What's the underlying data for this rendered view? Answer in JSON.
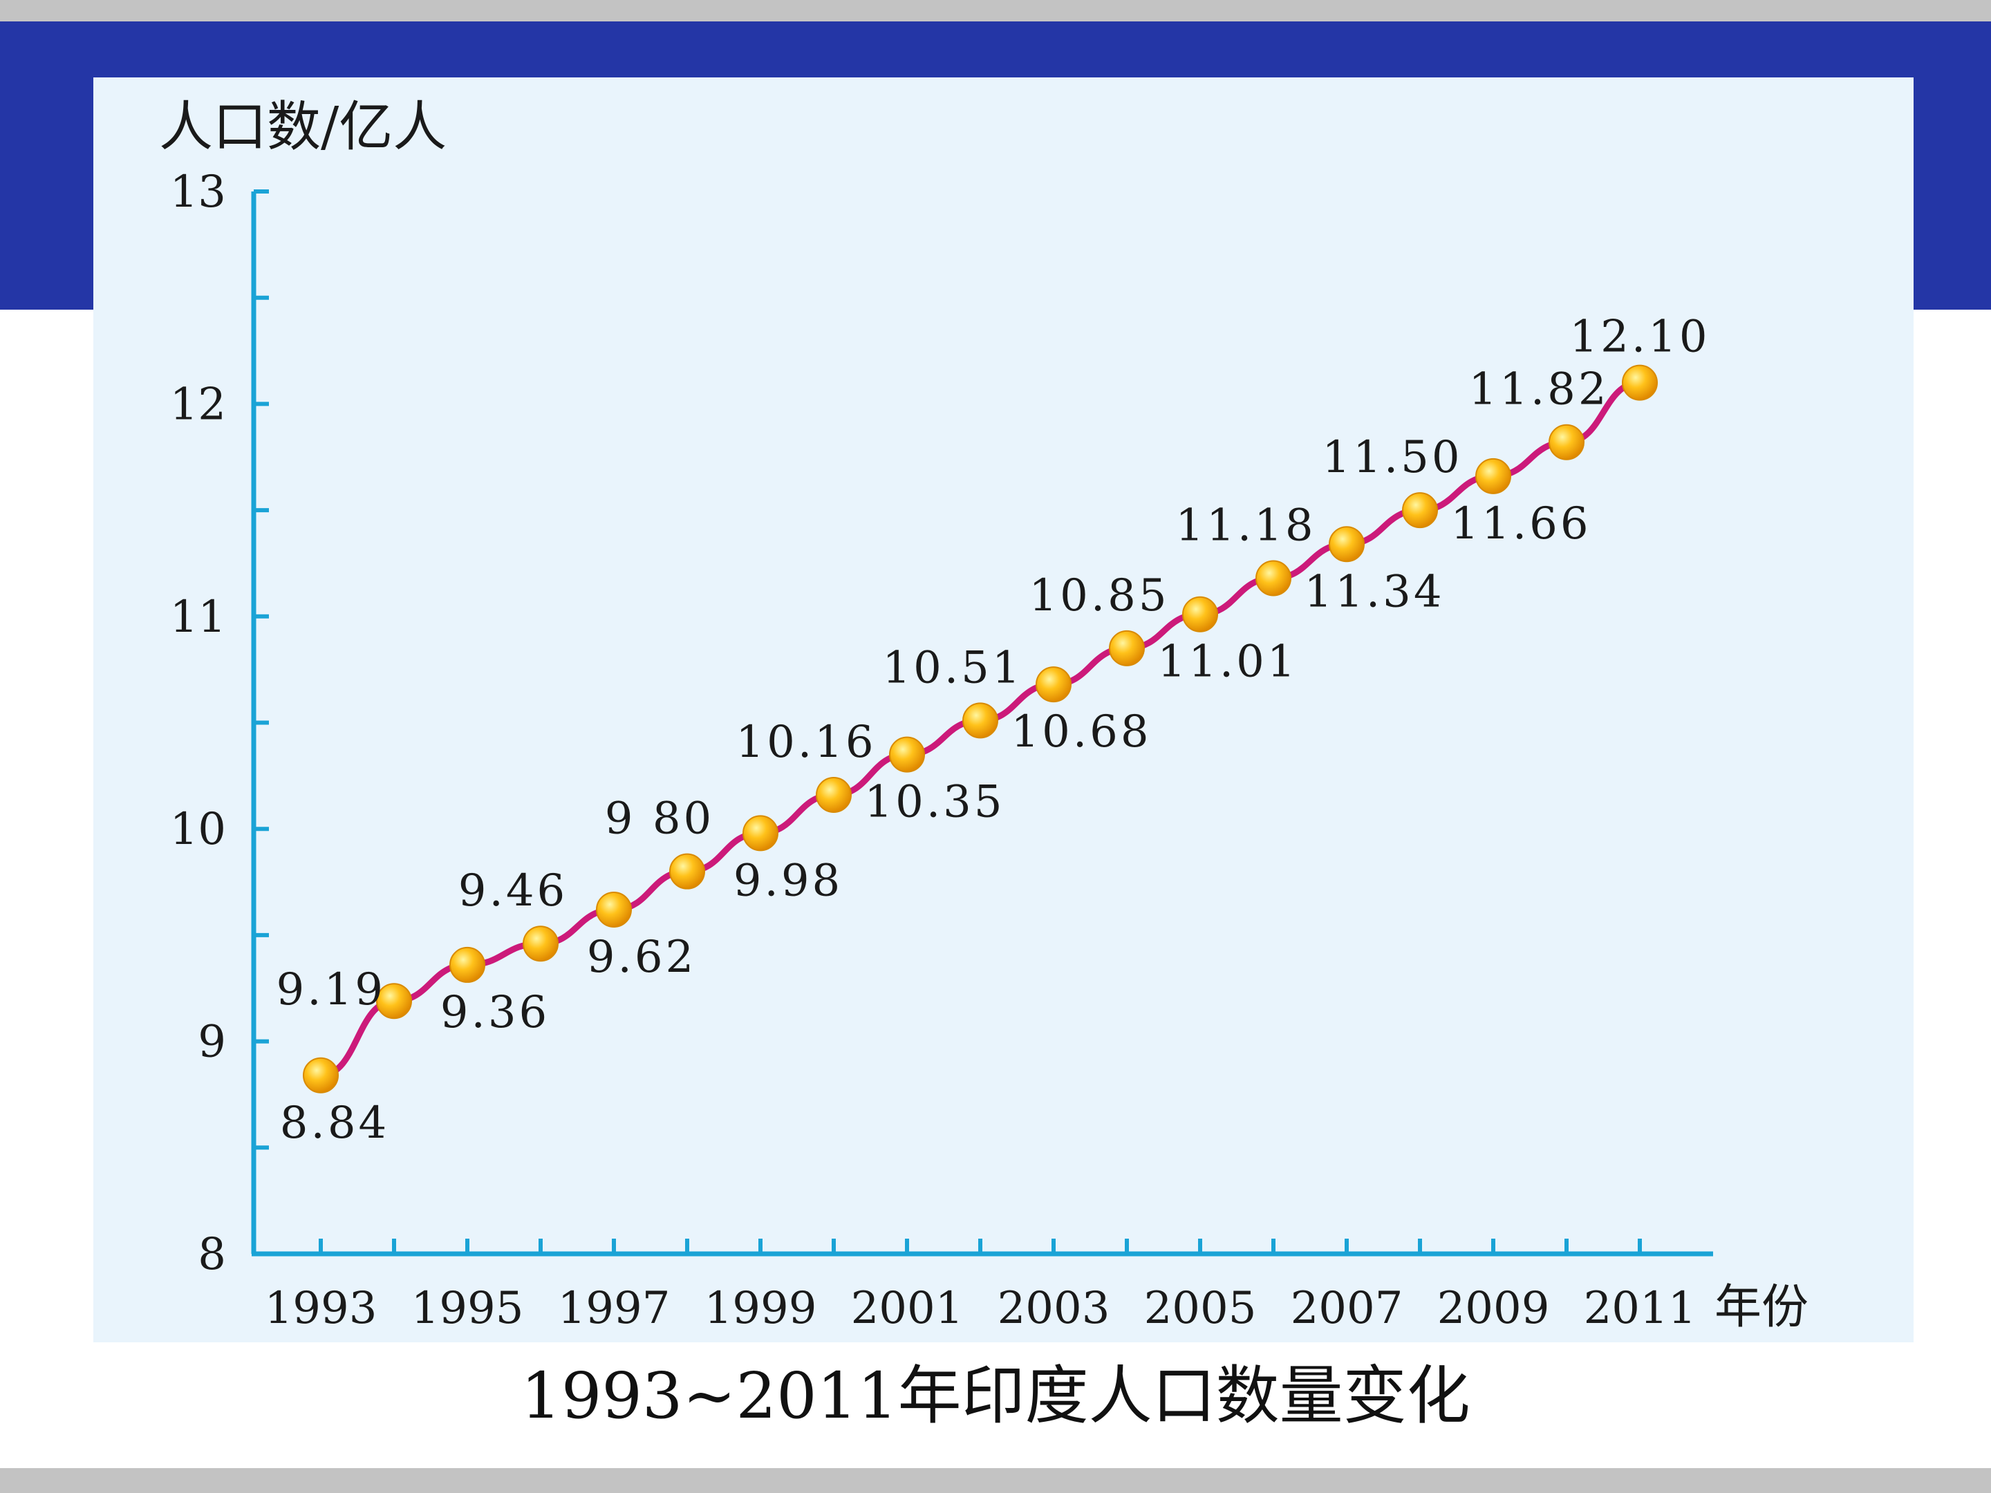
{
  "caption": "1993~2011年印度人口数量变化",
  "colors": {
    "top_band": "#2436a6",
    "panel": "#e9f4fc",
    "axis": "#1aa3d6",
    "line": "#cc1a7a",
    "marker": "#f5a300"
  },
  "chart_data": {
    "type": "line",
    "title": "",
    "ylabel": "人口数/亿人",
    "xlabel": "年份",
    "ylim": [
      8,
      13
    ],
    "y_ticks": [
      "8",
      "9",
      "10",
      "11",
      "12",
      "13"
    ],
    "x_tick_labels": [
      "1993",
      "1995",
      "1997",
      "1999",
      "2001",
      "2003",
      "2005",
      "2007",
      "2009",
      "2011"
    ],
    "x": [
      1993,
      1994,
      1995,
      1996,
      1997,
      1998,
      1999,
      2000,
      2001,
      2002,
      2003,
      2004,
      2005,
      2006,
      2007,
      2008,
      2009,
      2010,
      2011
    ],
    "values": [
      8.84,
      9.19,
      9.36,
      9.46,
      9.62,
      9.8,
      9.98,
      10.16,
      10.35,
      10.51,
      10.68,
      10.85,
      11.01,
      11.18,
      11.34,
      11.5,
      11.66,
      11.82,
      12.1
    ],
    "value_labels": [
      "8.84",
      "9.19",
      "9.36",
      "9.46",
      "9.62",
      "9 80",
      "9.98",
      "10.16",
      "10.35",
      "10.51",
      "10.68",
      "10.85",
      "11.01",
      "11.18",
      "11.34",
      "11.50",
      "11.66",
      "11.82",
      "12.10"
    ],
    "grid": false,
    "legend": "none"
  }
}
